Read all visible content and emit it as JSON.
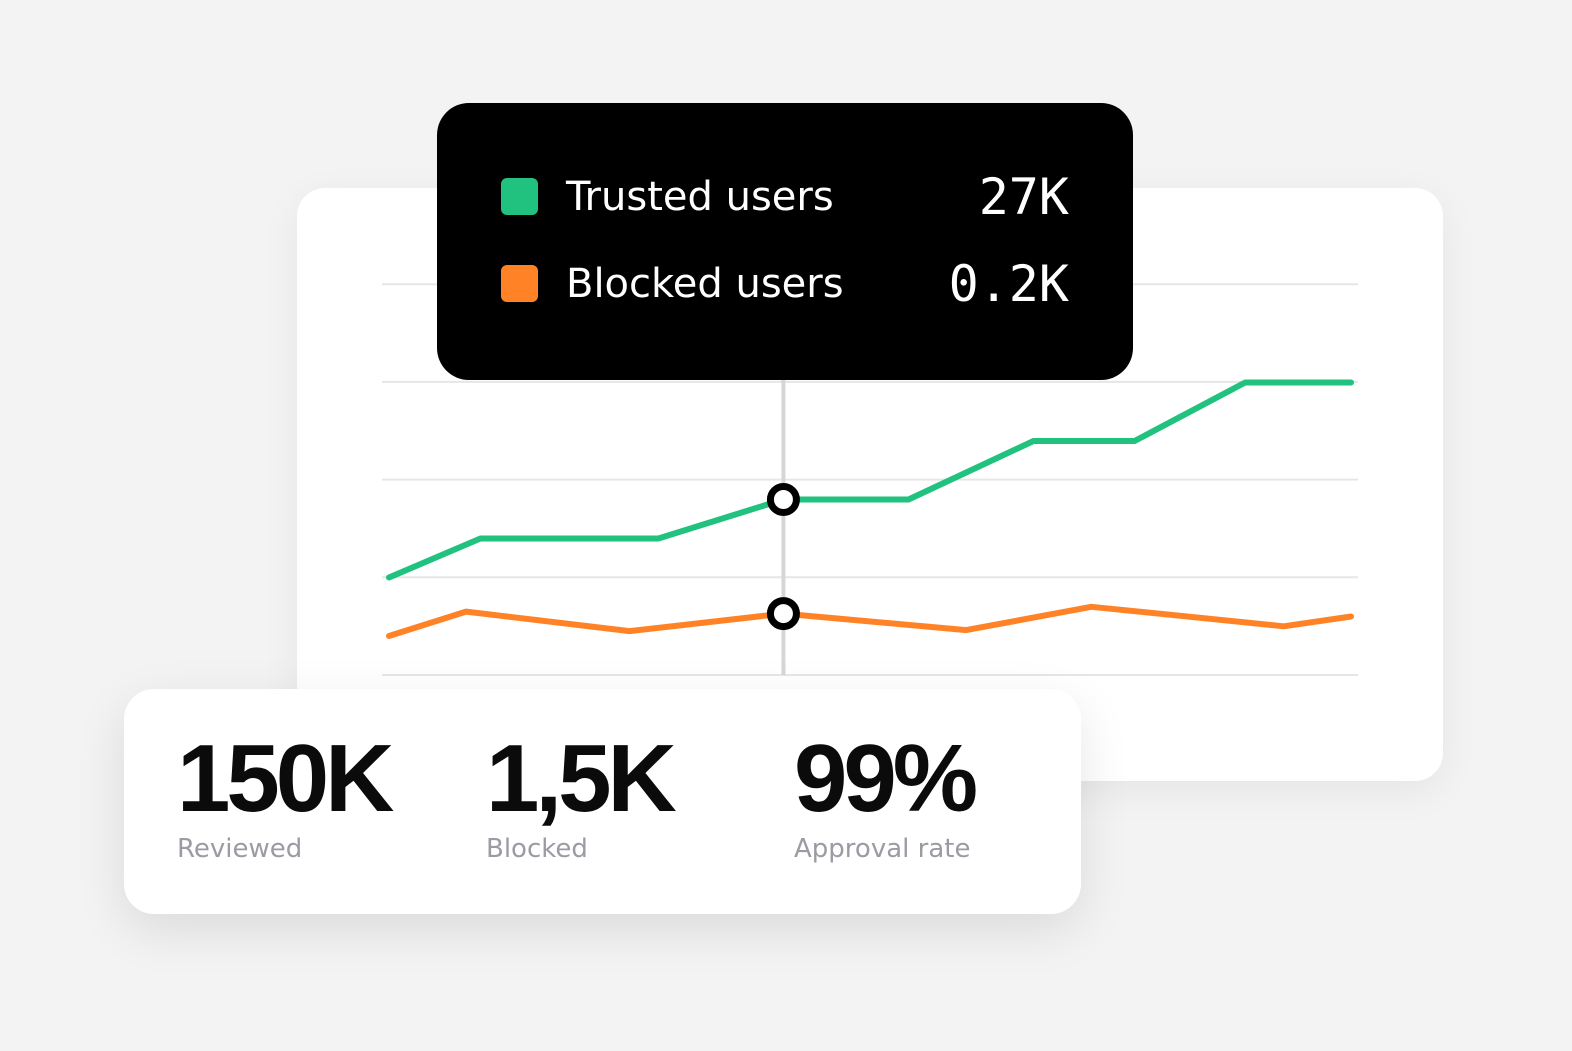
{
  "colors": {
    "trusted": "#21c27f",
    "blocked": "#ff8326",
    "gridline": "#e6e6e6",
    "cursor": "#d6d6d6",
    "tooltip_bg": "#000000",
    "muted_text": "#9b9ba3"
  },
  "tooltip": {
    "rows": [
      {
        "label": "Trusted users",
        "value": "27K"
      },
      {
        "label": "Blocked users",
        "value": "0.2K"
      }
    ]
  },
  "stats": [
    {
      "value": "150K",
      "label": "Reviewed"
    },
    {
      "value": "1,5K",
      "label": "Blocked"
    },
    {
      "value": "99%",
      "label": "Approval rate"
    }
  ],
  "chart_data": {
    "type": "line",
    "title": "",
    "xlabel": "",
    "ylabel": "",
    "grid": true,
    "ylim": [
      0,
      100
    ],
    "series": [
      {
        "name": "Trusted users",
        "color": "#21c27f",
        "points": [
          [
            0,
            10
          ],
          [
            9.5,
            14
          ],
          [
            28,
            14
          ],
          [
            41,
            18
          ],
          [
            54,
            18
          ],
          [
            67,
            24
          ],
          [
            77.5,
            24
          ],
          [
            89,
            30
          ],
          [
            100,
            30
          ]
        ]
      },
      {
        "name": "Blocked users",
        "color": "#ff8326",
        "points": [
          [
            0,
            4
          ],
          [
            8,
            6.5
          ],
          [
            25,
            4.5
          ],
          [
            41,
            6.3
          ],
          [
            60,
            4.6
          ],
          [
            73,
            7
          ],
          [
            93,
            5
          ],
          [
            100,
            6
          ]
        ]
      }
    ],
    "cursor_x": 41,
    "gridlines": 5
  }
}
